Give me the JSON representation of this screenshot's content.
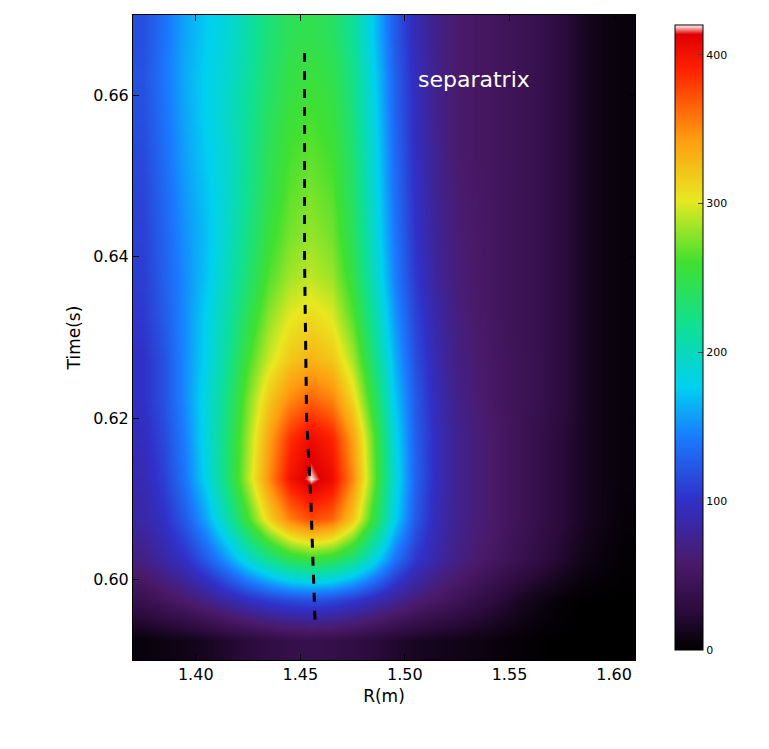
{
  "chart_data": {
    "type": "heatmap",
    "x_label": "R(m)",
    "y_label": "Time(s)",
    "x": [
      1.375,
      1.385,
      1.395,
      1.405,
      1.415,
      1.425,
      1.435,
      1.445,
      1.455,
      1.465,
      1.475,
      1.485,
      1.495,
      1.505,
      1.515,
      1.525,
      1.535,
      1.545,
      1.555,
      1.565,
      1.575,
      1.585,
      1.595,
      1.605
    ],
    "y": [
      0.5925,
      0.5975,
      0.6025,
      0.6075,
      0.6125,
      0.6175,
      0.6225,
      0.6275,
      0.6325,
      0.6375,
      0.6425,
      0.6475,
      0.6525,
      0.6575,
      0.6625,
      0.6675
    ],
    "z": [
      [
        5,
        8,
        10,
        14,
        20,
        26,
        32,
        36,
        38,
        36,
        32,
        26,
        20,
        15,
        12,
        10,
        8,
        5,
        3,
        1,
        0,
        0,
        0,
        0
      ],
      [
        40,
        50,
        60,
        72,
        85,
        98,
        108,
        115,
        118,
        115,
        105,
        92,
        78,
        65,
        55,
        45,
        35,
        25,
        15,
        8,
        3,
        0,
        0,
        0
      ],
      [
        70,
        85,
        100,
        125,
        155,
        190,
        220,
        245,
        255,
        248,
        225,
        185,
        140,
        105,
        85,
        70,
        60,
        50,
        40,
        30,
        20,
        10,
        5,
        2
      ],
      [
        85,
        100,
        125,
        160,
        205,
        260,
        315,
        355,
        375,
        365,
        320,
        250,
        180,
        125,
        92,
        75,
        65,
        55,
        45,
        35,
        25,
        15,
        8,
        3
      ],
      [
        90,
        110,
        140,
        180,
        230,
        290,
        350,
        400,
        420,
        405,
        350,
        270,
        190,
        130,
        95,
        75,
        65,
        55,
        45,
        35,
        25,
        15,
        8,
        5
      ],
      [
        95,
        115,
        145,
        185,
        230,
        285,
        340,
        385,
        405,
        390,
        340,
        265,
        185,
        128,
        95,
        75,
        65,
        55,
        45,
        35,
        25,
        15,
        8,
        5
      ],
      [
        100,
        120,
        150,
        185,
        225,
        275,
        320,
        350,
        365,
        352,
        310,
        245,
        175,
        125,
        92,
        72,
        62,
        52,
        45,
        38,
        28,
        15,
        8,
        5
      ],
      [
        100,
        120,
        150,
        180,
        215,
        260,
        295,
        320,
        330,
        320,
        285,
        225,
        165,
        118,
        88,
        70,
        60,
        52,
        45,
        38,
        28,
        15,
        8,
        5
      ],
      [
        105,
        125,
        150,
        178,
        208,
        245,
        280,
        302,
        310,
        300,
        265,
        210,
        155,
        112,
        85,
        68,
        58,
        50,
        44,
        38,
        28,
        15,
        8,
        5
      ],
      [
        108,
        128,
        150,
        172,
        200,
        232,
        265,
        285,
        292,
        283,
        250,
        198,
        146,
        106,
        80,
        65,
        57,
        50,
        44,
        38,
        28,
        15,
        8,
        5
      ],
      [
        110,
        130,
        152,
        170,
        195,
        225,
        255,
        275,
        282,
        273,
        242,
        192,
        142,
        102,
        78,
        64,
        56,
        50,
        44,
        38,
        28,
        15,
        8,
        5
      ],
      [
        112,
        132,
        155,
        172,
        192,
        220,
        248,
        268,
        275,
        266,
        236,
        188,
        138,
        100,
        76,
        62,
        55,
        50,
        44,
        38,
        28,
        15,
        8,
        5
      ],
      [
        115,
        135,
        158,
        175,
        192,
        218,
        244,
        262,
        268,
        260,
        232,
        185,
        135,
        98,
        75,
        60,
        54,
        49,
        44,
        38,
        28,
        15,
        8,
        5
      ],
      [
        118,
        138,
        160,
        178,
        194,
        216,
        240,
        256,
        262,
        254,
        226,
        182,
        132,
        96,
        74,
        60,
        54,
        49,
        44,
        38,
        28,
        15,
        8,
        5
      ],
      [
        120,
        140,
        162,
        178,
        192,
        212,
        234,
        250,
        255,
        248,
        222,
        178,
        130,
        95,
        73,
        60,
        54,
        49,
        44,
        38,
        28,
        15,
        8,
        5
      ],
      [
        118,
        138,
        160,
        175,
        188,
        208,
        230,
        244,
        248,
        240,
        215,
        172,
        126,
        92,
        72,
        60,
        54,
        49,
        44,
        38,
        28,
        15,
        8,
        5
      ]
    ],
    "xlim": [
      1.37,
      1.61
    ],
    "ylim": [
      0.59,
      0.67
    ],
    "xticks": [
      {
        "value": 1.4,
        "label": "1.40"
      },
      {
        "value": 1.45,
        "label": "1.45"
      },
      {
        "value": 1.5,
        "label": "1.50"
      },
      {
        "value": 1.55,
        "label": "1.55"
      },
      {
        "value": 1.6,
        "label": "1.60"
      }
    ],
    "yticks": [
      {
        "value": 0.6,
        "label": "0.60"
      },
      {
        "value": 0.62,
        "label": "0.62"
      },
      {
        "value": 0.64,
        "label": "0.64"
      },
      {
        "value": 0.66,
        "label": "0.66"
      }
    ],
    "colorbar": {
      "range": [
        0,
        420
      ],
      "ticks": [
        0,
        100,
        200,
        300,
        400
      ]
    },
    "line": {
      "x": [
        1.457,
        1.455,
        1.453,
        1.452,
        1.452
      ],
      "y": [
        0.595,
        0.61,
        0.62,
        0.64,
        0.666
      ],
      "color": "#000000",
      "line_style": "dashed"
    },
    "annotations": [
      {
        "text": "separatrix",
        "x": 1.533,
        "y": 0.662
      }
    ]
  }
}
